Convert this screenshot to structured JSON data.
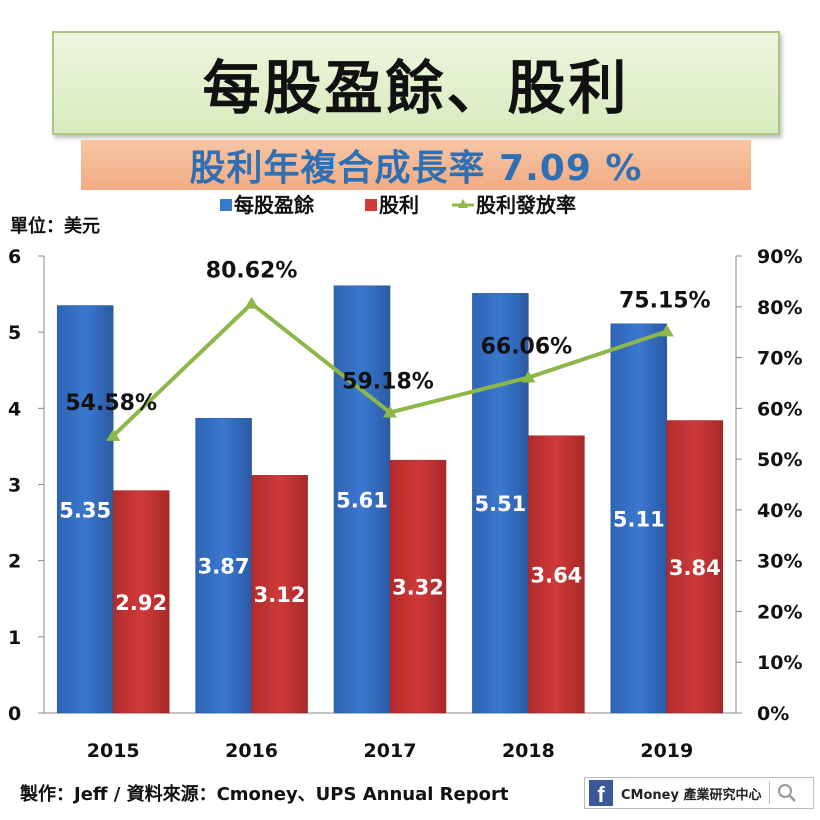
{
  "header": {
    "title": "每股盈餘、股利",
    "subtitle": "股利年複合成長率 7.09 %"
  },
  "unit_label": "單位：美元",
  "footer": {
    "credit": "製作：Jeff / 資料來源：Cmoney、UPS Annual Report",
    "brand": "CMoney 產業研究中心"
  },
  "icons": [
    "facebook-icon",
    "search-icon"
  ],
  "colors": {
    "eps": "#3a78cf",
    "dividend": "#cf3a3a",
    "payout": "#8db849"
  },
  "chart_data": {
    "type": "bar",
    "categories": [
      "2015",
      "2016",
      "2017",
      "2018",
      "2019"
    ],
    "series": [
      {
        "name": "每股盈餘",
        "type": "bar",
        "axis": "left",
        "values": [
          5.35,
          3.87,
          5.61,
          5.51,
          5.11
        ],
        "labels": [
          "5.35",
          "3.87",
          "5.61",
          "5.51",
          "5.11"
        ]
      },
      {
        "name": "股利",
        "type": "bar",
        "axis": "left",
        "values": [
          2.92,
          3.12,
          3.32,
          3.64,
          3.84
        ],
        "labels": [
          "2.92",
          "3.12",
          "3.32",
          "3.64",
          "3.84"
        ]
      },
      {
        "name": "股利發放率",
        "type": "line",
        "axis": "right",
        "values": [
          54.58,
          80.62,
          59.18,
          66.06,
          75.15
        ],
        "labels": [
          "54.58%",
          "80.62%",
          "59.18%",
          "66.06%",
          "75.15%"
        ]
      }
    ],
    "y_left": {
      "min": 0,
      "max": 6,
      "ticks": [
        "0",
        "1",
        "2",
        "3",
        "4",
        "5",
        "6"
      ]
    },
    "y_right": {
      "min": 0,
      "max": 90,
      "ticks": [
        "0%",
        "10%",
        "20%",
        "30%",
        "40%",
        "50%",
        "60%",
        "70%",
        "80%",
        "90%"
      ]
    },
    "legend_position": "top",
    "grid": false
  }
}
